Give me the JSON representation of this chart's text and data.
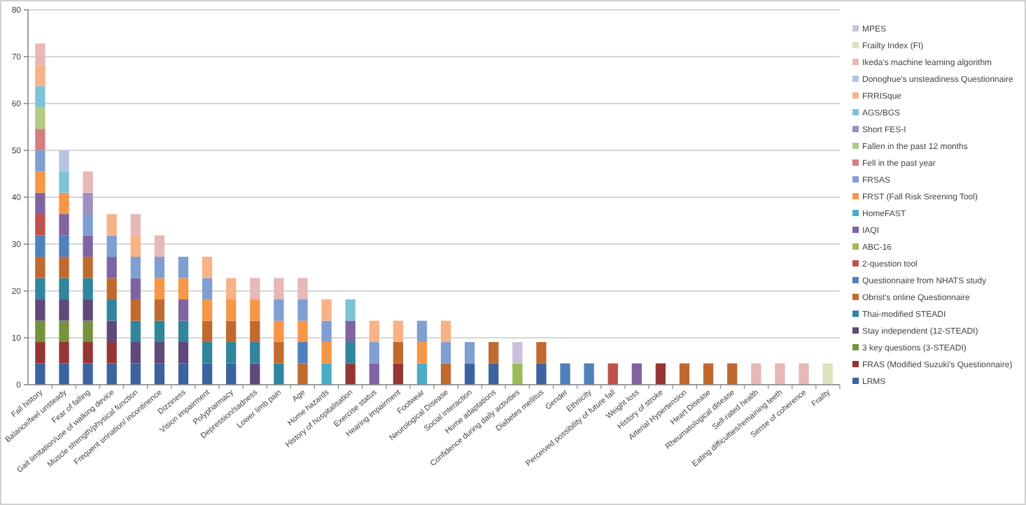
{
  "chart_data": {
    "type": "bar",
    "stacked": true,
    "categories": [
      "Fall history",
      "Balance/feel unsteady",
      "Fear of falling",
      "Gait limitation/use  of walking device",
      "Muscle strength/physical function",
      "Frequent urination/ incontinence",
      "Dizziness",
      "Vision impairment",
      "Polypharmacy",
      "Depression/sadness",
      "Lower limb pain",
      "Age",
      "Home hazards",
      "History of hospitalisation",
      "Exercise status",
      "Hearing impairment",
      "Footwear",
      "Neurological Disease",
      "Social interaction",
      "Home adaptations",
      "Confidence during daily activities",
      "Diabetes mellitus",
      "Gender",
      "Ethnicity",
      "Perceived possibility of future fall",
      "Weight loss",
      "History of stroke",
      "Arterial Hypertension",
      "Heart Disease",
      "Rheumatological disease",
      "Self-rated health",
      "Eating difficulties/remaining teeth",
      "Sense of coherence",
      "Frailty"
    ],
    "ylim": [
      0,
      80
    ],
    "yticks": [
      0,
      10,
      20,
      30,
      40,
      50,
      60,
      70,
      80
    ],
    "grid": "y",
    "legend": "right",
    "series": [
      {
        "name": "LRMS",
        "color": "#3a63a0",
        "values": [
          4.55,
          4.55,
          4.55,
          4.55,
          4.55,
          4.55,
          4.55,
          4.55,
          4.55,
          null,
          null,
          null,
          null,
          null,
          null,
          null,
          null,
          null,
          4.55,
          4.55,
          null,
          4.55,
          null,
          null,
          null,
          null,
          null,
          null,
          null,
          null,
          null,
          null,
          null,
          null
        ]
      },
      {
        "name": "FRAS (Modified Suzuki's Questionnaire)",
        "color": "#963634",
        "values": [
          4.55,
          4.55,
          4.55,
          4.55,
          null,
          null,
          null,
          null,
          null,
          null,
          null,
          null,
          null,
          4.55,
          null,
          4.55,
          null,
          null,
          null,
          null,
          null,
          null,
          null,
          null,
          null,
          null,
          4.55,
          null,
          null,
          null,
          null,
          null,
          null,
          null
        ]
      },
      {
        "name": "3 key questions (3-STEADI)",
        "color": "#76923c",
        "values": [
          4.55,
          4.55,
          4.55,
          null,
          null,
          null,
          null,
          null,
          null,
          null,
          null,
          null,
          null,
          null,
          null,
          null,
          null,
          null,
          null,
          null,
          null,
          null,
          null,
          null,
          null,
          null,
          null,
          null,
          null,
          null,
          null,
          null,
          null,
          null
        ]
      },
      {
        "name": "Stay independent (12-STEADI)",
        "color": "#5f497a",
        "values": [
          4.55,
          4.55,
          4.55,
          4.55,
          4.55,
          4.55,
          4.55,
          null,
          null,
          4.55,
          null,
          null,
          null,
          null,
          null,
          null,
          null,
          null,
          null,
          null,
          null,
          null,
          null,
          null,
          null,
          null,
          null,
          null,
          null,
          null,
          null,
          null,
          null,
          null
        ]
      },
      {
        "name": "Thai-modified STEADI",
        "color": "#31859c",
        "values": [
          4.55,
          4.55,
          4.55,
          4.55,
          4.55,
          4.55,
          4.55,
          4.55,
          4.55,
          4.55,
          4.55,
          null,
          null,
          4.55,
          null,
          null,
          null,
          null,
          null,
          null,
          null,
          null,
          null,
          null,
          null,
          null,
          null,
          null,
          null,
          null,
          null,
          null,
          null,
          null
        ]
      },
      {
        "name": "Obrist's online Questionnaire",
        "color": "#c06a30",
        "values": [
          4.55,
          4.55,
          4.55,
          4.55,
          4.55,
          4.55,
          null,
          4.55,
          4.55,
          4.55,
          4.55,
          4.55,
          null,
          null,
          null,
          4.55,
          null,
          4.55,
          null,
          4.55,
          null,
          4.55,
          null,
          null,
          null,
          null,
          null,
          4.55,
          4.55,
          4.55,
          null,
          null,
          null,
          null
        ]
      },
      {
        "name": "Questionnaire from NHATS study",
        "color": "#4f81bd",
        "values": [
          4.55,
          4.55,
          null,
          null,
          null,
          null,
          null,
          null,
          null,
          null,
          null,
          4.55,
          null,
          null,
          null,
          null,
          null,
          null,
          null,
          null,
          null,
          null,
          4.55,
          4.55,
          null,
          null,
          null,
          null,
          null,
          null,
          null,
          null,
          null,
          null
        ]
      },
      {
        "name": "2-question tool",
        "color": "#c0504d",
        "values": [
          4.55,
          null,
          null,
          null,
          null,
          null,
          null,
          null,
          null,
          null,
          null,
          null,
          null,
          null,
          null,
          null,
          null,
          null,
          null,
          null,
          null,
          null,
          null,
          null,
          4.55,
          null,
          null,
          null,
          null,
          null,
          null,
          null,
          null,
          null
        ]
      },
      {
        "name": "ABC-16",
        "color": "#9bbb59",
        "values": [
          null,
          null,
          null,
          null,
          null,
          null,
          null,
          null,
          null,
          null,
          null,
          null,
          null,
          null,
          null,
          null,
          null,
          null,
          null,
          null,
          4.55,
          null,
          null,
          null,
          null,
          null,
          null,
          null,
          null,
          null,
          null,
          null,
          null,
          null
        ]
      },
      {
        "name": "IAQI",
        "color": "#8064a2",
        "values": [
          4.55,
          4.55,
          4.55,
          4.55,
          4.55,
          null,
          4.55,
          null,
          null,
          null,
          null,
          null,
          null,
          4.55,
          4.55,
          null,
          null,
          null,
          null,
          null,
          null,
          null,
          null,
          null,
          null,
          4.55,
          null,
          null,
          null,
          null,
          null,
          null,
          null,
          null
        ]
      },
      {
        "name": "HomeFAST",
        "color": "#4bacc6",
        "values": [
          null,
          null,
          null,
          null,
          null,
          null,
          null,
          null,
          null,
          null,
          null,
          null,
          4.55,
          null,
          null,
          null,
          4.55,
          null,
          null,
          null,
          null,
          null,
          null,
          null,
          null,
          null,
          null,
          null,
          null,
          null,
          null,
          null,
          null,
          null
        ]
      },
      {
        "name": "FRST (Fall Risk Sreening Tool)",
        "color": "#f79646",
        "values": [
          4.55,
          4.55,
          null,
          null,
          null,
          4.55,
          4.55,
          4.55,
          4.55,
          4.55,
          4.55,
          4.55,
          4.55,
          null,
          null,
          null,
          4.55,
          null,
          null,
          null,
          null,
          null,
          null,
          null,
          null,
          null,
          null,
          null,
          null,
          null,
          null,
          null,
          null,
          null
        ]
      },
      {
        "name": "FRSAS",
        "color": "#7f9fd3",
        "values": [
          4.55,
          null,
          4.55,
          4.55,
          4.55,
          4.55,
          4.55,
          4.55,
          null,
          null,
          4.55,
          4.55,
          4.55,
          null,
          4.55,
          null,
          4.55,
          4.55,
          4.55,
          null,
          null,
          null,
          null,
          null,
          null,
          null,
          null,
          null,
          null,
          null,
          null,
          null,
          null,
          null
        ]
      },
      {
        "name": "Fell in the past year",
        "color": "#d47f7d",
        "values": [
          4.55,
          null,
          null,
          null,
          null,
          null,
          null,
          null,
          null,
          null,
          null,
          null,
          null,
          null,
          null,
          null,
          null,
          null,
          null,
          null,
          null,
          null,
          null,
          null,
          null,
          null,
          null,
          null,
          null,
          null,
          null,
          null,
          null,
          null
        ]
      },
      {
        "name": "Fallen in the past  12 months",
        "color": "#b3cb83",
        "values": [
          4.55,
          null,
          null,
          null,
          null,
          null,
          null,
          null,
          null,
          null,
          null,
          null,
          null,
          null,
          null,
          null,
          null,
          null,
          null,
          null,
          null,
          null,
          null,
          null,
          null,
          null,
          null,
          null,
          null,
          null,
          null,
          null,
          null,
          null
        ]
      },
      {
        "name": "Short FES-I",
        "color": "#a08fbf",
        "values": [
          null,
          null,
          4.55,
          null,
          null,
          null,
          null,
          null,
          null,
          null,
          null,
          null,
          null,
          null,
          null,
          null,
          null,
          null,
          null,
          null,
          null,
          null,
          null,
          null,
          null,
          null,
          null,
          null,
          null,
          null,
          null,
          null,
          null,
          null
        ]
      },
      {
        "name": "AGS/BGS",
        "color": "#7dc3d7",
        "values": [
          4.55,
          4.55,
          null,
          null,
          null,
          null,
          null,
          null,
          null,
          null,
          null,
          null,
          null,
          4.55,
          null,
          null,
          null,
          null,
          null,
          null,
          null,
          null,
          null,
          null,
          null,
          null,
          null,
          null,
          null,
          null,
          null,
          null,
          null,
          null
        ]
      },
      {
        "name": "FRRISque",
        "color": "#f9b285",
        "values": [
          4.55,
          null,
          null,
          4.55,
          4.55,
          null,
          null,
          4.55,
          4.55,
          null,
          null,
          null,
          4.55,
          null,
          4.55,
          4.55,
          null,
          4.55,
          null,
          null,
          null,
          null,
          null,
          null,
          null,
          null,
          null,
          null,
          null,
          null,
          null,
          null,
          null,
          null
        ]
      },
      {
        "name": "Donoghue's unsteadiness Questionnaire",
        "color": "#b4c5e4",
        "values": [
          null,
          4.55,
          null,
          null,
          null,
          null,
          null,
          null,
          null,
          null,
          null,
          null,
          null,
          null,
          null,
          null,
          null,
          null,
          null,
          null,
          null,
          null,
          null,
          null,
          null,
          null,
          null,
          null,
          null,
          null,
          null,
          null,
          null,
          null
        ]
      },
      {
        "name": "Ikeda's machine learning algorithm",
        "color": "#e6b8b7",
        "values": [
          4.55,
          null,
          4.55,
          null,
          4.55,
          4.55,
          null,
          null,
          null,
          4.55,
          4.55,
          4.55,
          null,
          null,
          null,
          null,
          null,
          null,
          null,
          null,
          null,
          null,
          null,
          null,
          null,
          null,
          null,
          null,
          null,
          null,
          4.55,
          4.55,
          4.55,
          null
        ]
      },
      {
        "name": "Frailty Index (FI)",
        "color": "#d7e4bd",
        "values": [
          null,
          null,
          null,
          null,
          null,
          null,
          null,
          null,
          null,
          null,
          null,
          null,
          null,
          null,
          null,
          null,
          null,
          null,
          null,
          null,
          null,
          null,
          null,
          null,
          null,
          null,
          null,
          null,
          null,
          null,
          null,
          null,
          null,
          4.55
        ]
      },
      {
        "name": "MPES",
        "color": "#ccc1da",
        "values": [
          null,
          null,
          null,
          null,
          null,
          null,
          null,
          null,
          null,
          null,
          null,
          null,
          null,
          null,
          null,
          null,
          null,
          null,
          null,
          null,
          4.55,
          null,
          null,
          null,
          null,
          null,
          null,
          null,
          null,
          null,
          null,
          null,
          null,
          null
        ]
      }
    ]
  }
}
